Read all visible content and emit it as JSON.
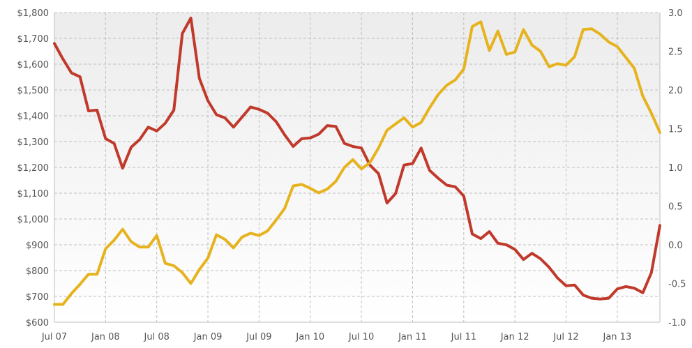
{
  "chart_data": {
    "type": "line",
    "title": "",
    "xlabel": "",
    "ylabel": "",
    "x_tick_labels": [
      "Jul 07",
      "Jan 08",
      "Jul 08",
      "Jan 09",
      "Jul 09",
      "Jan 10",
      "Jul 10",
      "Jan 11",
      "Jul 11",
      "Jan 12",
      "Jul 12",
      "Jan 13"
    ],
    "y_left": {
      "ylim": [
        600,
        1800
      ],
      "ticks": [
        600,
        700,
        800,
        900,
        1000,
        1100,
        1200,
        1300,
        1400,
        1500,
        1600,
        1700,
        1800
      ],
      "tick_labels": [
        "$600",
        "$700",
        "$800",
        "$900",
        "$1,000",
        "$1,100",
        "$1,200",
        "$1,300",
        "$1,400",
        "$1,500",
        "$1,600",
        "$1,700",
        "$1,800"
      ]
    },
    "y_right": {
      "ylim": [
        -1.0,
        3.0
      ],
      "ticks": [
        -1.0,
        -0.5,
        0.0,
        0.5,
        1.0,
        1.5,
        2.0,
        2.5,
        3.0
      ],
      "tick_labels": [
        "-1.0",
        "-0.5",
        "0.0",
        "0.5",
        "1.0",
        "1.5",
        "2.0",
        "2.5",
        "3.0"
      ]
    },
    "grid": true,
    "series": [
      {
        "axis": "right",
        "color": "#c0392b",
        "values": [
          2.6,
          2.4,
          2.22,
          2.17,
          1.73,
          1.74,
          1.37,
          1.31,
          0.99,
          1.26,
          1.36,
          1.52,
          1.47,
          1.57,
          1.74,
          2.73,
          2.93,
          2.15,
          1.86,
          1.68,
          1.64,
          1.52,
          1.65,
          1.78,
          1.75,
          1.7,
          1.59,
          1.42,
          1.27,
          1.37,
          1.38,
          1.43,
          1.54,
          1.53,
          1.31,
          1.27,
          1.25,
          1.03,
          0.92,
          0.54,
          0.66,
          1.03,
          1.05,
          1.25,
          0.96,
          0.86,
          0.77,
          0.75,
          0.63,
          0.14,
          0.08,
          0.17,
          0.02,
          0.0,
          -0.06,
          -0.19,
          -0.11,
          -0.18,
          -0.29,
          -0.43,
          -0.53,
          -0.52,
          -0.65,
          -0.69,
          -0.7,
          -0.69,
          -0.57,
          -0.54,
          -0.56,
          -0.62,
          -0.36,
          0.25
        ]
      },
      {
        "axis": "right",
        "color": "#e6b31e",
        "values": [
          -0.77,
          -0.77,
          -0.63,
          -0.51,
          -0.38,
          -0.38,
          -0.05,
          0.06,
          0.2,
          0.04,
          -0.03,
          -0.03,
          0.12,
          -0.24,
          -0.27,
          -0.36,
          -0.5,
          -0.32,
          -0.17,
          0.13,
          0.07,
          -0.04,
          0.1,
          0.15,
          0.12,
          0.18,
          0.32,
          0.47,
          0.76,
          0.78,
          0.73,
          0.67,
          0.72,
          0.82,
          1.0,
          1.1,
          0.98,
          1.06,
          1.25,
          1.48,
          1.56,
          1.64,
          1.52,
          1.58,
          1.77,
          1.94,
          2.06,
          2.13,
          2.27,
          2.82,
          2.88,
          2.51,
          2.76,
          2.46,
          2.49,
          2.78,
          2.58,
          2.5,
          2.3,
          2.34,
          2.32,
          2.43,
          2.78,
          2.79,
          2.72,
          2.62,
          2.56,
          2.42,
          2.28,
          1.92,
          1.7,
          1.45
        ]
      }
    ]
  }
}
